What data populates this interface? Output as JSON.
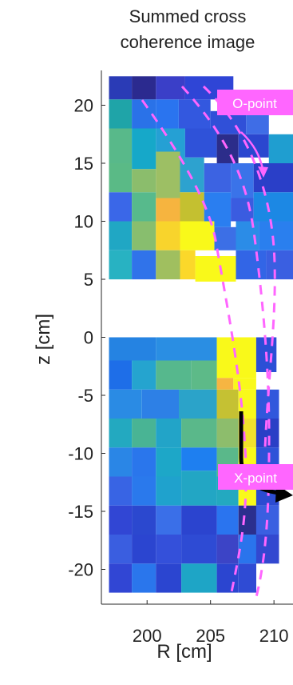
{
  "chart_data": {
    "type": "heatmap",
    "title_lines": [
      "Summed cross",
      "coherence image"
    ],
    "xlabel": "R [cm]",
    "ylabel": "z [cm]",
    "xticks": [
      200,
      205,
      210
    ],
    "yticks": [
      20,
      15,
      10,
      5,
      0,
      -5,
      -10,
      -15,
      -20
    ],
    "xlim": [
      196.4,
      211.5
    ],
    "ylim": [
      -23,
      23
    ],
    "annotations": [
      {
        "text": "O-point",
        "background": "#ff66ff"
      },
      {
        "text": "X-point",
        "background": "#ff66ff"
      }
    ],
    "colors": {
      "annotation_bg": "#ff66ff",
      "separatrix": "#ff66ff",
      "arrow": "#000000"
    },
    "upper_cells": [
      {
        "r0": 197.0,
        "r1": 198.8,
        "z0": 20.5,
        "z1": 22.5,
        "c": "#2a3bb6"
      },
      {
        "r0": 198.8,
        "r1": 200.7,
        "z0": 20.5,
        "z1": 22.5,
        "c": "#2b2a8f"
      },
      {
        "r0": 200.7,
        "r1": 203.0,
        "z0": 20.5,
        "z1": 22.5,
        "c": "#3a3fc8"
      },
      {
        "r0": 203.0,
        "r1": 206.8,
        "z0": 20.5,
        "z1": 22.5,
        "c": "#2f45d6"
      },
      {
        "r0": 197.0,
        "r1": 198.8,
        "z0": 18.0,
        "z1": 20.5,
        "c": "#1fa4a8"
      },
      {
        "r0": 198.8,
        "r1": 200.7,
        "z0": 18.0,
        "z1": 20.5,
        "c": "#2a72e8"
      },
      {
        "r0": 200.7,
        "r1": 202.5,
        "z0": 18.0,
        "z1": 20.5,
        "c": "#2a74ef"
      },
      {
        "r0": 202.5,
        "r1": 205.0,
        "z0": 18.0,
        "z1": 20.5,
        "c": "#3358df"
      },
      {
        "r0": 205.0,
        "r1": 207.8,
        "z0": 17.5,
        "z1": 19.5,
        "c": "#3050d8"
      },
      {
        "r0": 207.8,
        "r1": 209.6,
        "z0": 17.5,
        "z1": 19.5,
        "c": "#3f6de6"
      },
      {
        "r0": 197.0,
        "r1": 198.8,
        "z0": 15.0,
        "z1": 18.0,
        "c": "#58b98a"
      },
      {
        "r0": 198.8,
        "r1": 200.7,
        "z0": 14.5,
        "z1": 18.0,
        "c": "#16a8c9"
      },
      {
        "r0": 200.7,
        "r1": 203.0,
        "z0": 14.5,
        "z1": 18.0,
        "c": "#25a0d4"
      },
      {
        "r0": 203.0,
        "r1": 205.5,
        "z0": 15.5,
        "z1": 18.0,
        "c": "#2f52d9"
      },
      {
        "r0": 205.5,
        "r1": 207.2,
        "z0": 15.0,
        "z1": 17.5,
        "c": "#2c2d8a"
      },
      {
        "r0": 207.2,
        "r1": 209.6,
        "z0": 15.5,
        "z1": 17.5,
        "c": "#2b47cf"
      },
      {
        "r0": 209.6,
        "r1": 211.5,
        "z0": 15.0,
        "z1": 17.5,
        "c": "#1f9ed0"
      },
      {
        "r0": 197.0,
        "r1": 198.8,
        "z0": 12.5,
        "z1": 15.0,
        "c": "#5aba86"
      },
      {
        "r0": 198.8,
        "r1": 200.7,
        "z0": 12.5,
        "z1": 14.5,
        "c": "#8bbd6c"
      },
      {
        "r0": 200.7,
        "r1": 202.6,
        "z0": 12.0,
        "z1": 16.0,
        "c": "#9dbf64"
      },
      {
        "r0": 202.6,
        "r1": 204.5,
        "z0": 12.5,
        "z1": 15.5,
        "c": "#2da2cf"
      },
      {
        "r0": 204.5,
        "r1": 206.6,
        "z0": 12.5,
        "z1": 15.0,
        "c": "#3c63e2"
      },
      {
        "r0": 206.6,
        "r1": 208.4,
        "z0": 12.0,
        "z1": 15.0,
        "c": "#3a73e9"
      },
      {
        "r0": 208.4,
        "r1": 211.5,
        "z0": 12.5,
        "z1": 15.0,
        "c": "#2a3fc8"
      },
      {
        "r0": 197.0,
        "r1": 198.8,
        "z0": 10.0,
        "z1": 12.5,
        "c": "#3a67e8"
      },
      {
        "r0": 198.8,
        "r1": 200.7,
        "z0": 10.0,
        "z1": 12.5,
        "c": "#57ba8c"
      },
      {
        "r0": 200.7,
        "r1": 202.6,
        "z0": 10.0,
        "z1": 12.0,
        "c": "#f6b43f"
      },
      {
        "r0": 202.6,
        "r1": 204.5,
        "z0": 9.5,
        "z1": 12.5,
        "c": "#c4c030"
      },
      {
        "r0": 204.5,
        "r1": 206.6,
        "z0": 9.5,
        "z1": 12.5,
        "c": "#2a7ef0"
      },
      {
        "r0": 206.6,
        "r1": 208.4,
        "z0": 10.0,
        "z1": 12.0,
        "c": "#3a5ce0"
      },
      {
        "r0": 208.4,
        "r1": 211.5,
        "z0": 10.0,
        "z1": 12.5,
        "c": "#1c88e4"
      },
      {
        "r0": 197.0,
        "r1": 198.8,
        "z0": 7.5,
        "z1": 10.0,
        "c": "#20a7c4"
      },
      {
        "r0": 198.8,
        "r1": 200.7,
        "z0": 7.5,
        "z1": 10.0,
        "c": "#88be6e"
      },
      {
        "r0": 200.7,
        "r1": 202.6,
        "z0": 7.5,
        "z1": 10.0,
        "c": "#f8d42c"
      },
      {
        "r0": 202.6,
        "r1": 205.3,
        "z0": 7.5,
        "z1": 10.0,
        "c": "#f9f91a"
      },
      {
        "r0": 205.3,
        "r1": 207.0,
        "z0": 7.5,
        "z1": 9.5,
        "c": "#3c6fe6"
      },
      {
        "r0": 207.0,
        "r1": 208.8,
        "z0": 7.5,
        "z1": 10.0,
        "c": "#2b8ce7"
      },
      {
        "r0": 208.8,
        "r1": 211.5,
        "z0": 7.5,
        "z1": 10.0,
        "c": "#2a7fee"
      },
      {
        "r0": 197.0,
        "r1": 198.8,
        "z0": 5.0,
        "z1": 7.5,
        "c": "#28b2c2"
      },
      {
        "r0": 198.8,
        "r1": 200.7,
        "z0": 5.0,
        "z1": 7.5,
        "c": "#3073ea"
      },
      {
        "r0": 200.7,
        "r1": 202.6,
        "z0": 5.0,
        "z1": 7.5,
        "c": "#a0bf5f"
      },
      {
        "r0": 202.6,
        "r1": 203.8,
        "z0": 5.0,
        "z1": 7.5,
        "c": "#fbd82a"
      },
      {
        "r0": 203.8,
        "r1": 207.0,
        "z0": 4.8,
        "z1": 7.0,
        "c": "#f9f91a"
      },
      {
        "r0": 207.0,
        "r1": 209.4,
        "z0": 5.0,
        "z1": 7.5,
        "c": "#3265e6"
      },
      {
        "r0": 209.4,
        "r1": 211.5,
        "z0": 5.0,
        "z1": 7.5,
        "c": "#3a5fe1"
      }
    ],
    "lower_cells": [
      {
        "r0": 197.0,
        "r1": 200.7,
        "z0": -2.0,
        "z1": 0.0,
        "c": "#2583e2"
      },
      {
        "r0": 200.7,
        "r1": 205.5,
        "z0": -2.0,
        "z1": 0.0,
        "c": "#2a8ee3"
      },
      {
        "r0": 205.5,
        "r1": 208.6,
        "z0": -3.5,
        "z1": 0.0,
        "c": "#f9f91a"
      },
      {
        "r0": 208.6,
        "r1": 210.2,
        "z0": -3.0,
        "z1": 0.0,
        "c": "#2b4fd6"
      },
      {
        "r0": 197.0,
        "r1": 198.8,
        "z0": -4.5,
        "z1": -2.0,
        "c": "#1e6ee8"
      },
      {
        "r0": 198.8,
        "r1": 200.7,
        "z0": -4.5,
        "z1": -2.0,
        "c": "#25a4cf"
      },
      {
        "r0": 200.7,
        "r1": 203.5,
        "z0": -4.5,
        "z1": -2.0,
        "c": "#56b88d"
      },
      {
        "r0": 203.5,
        "r1": 205.5,
        "z0": -4.5,
        "z1": -2.0,
        "c": "#5dba88"
      },
      {
        "r0": 205.5,
        "r1": 206.8,
        "z0": -4.5,
        "z1": -3.5,
        "c": "#f6b542"
      },
      {
        "r0": 206.8,
        "r1": 208.6,
        "z0": -4.5,
        "z1": -3.5,
        "c": "#f9f91a"
      },
      {
        "r0": 197.0,
        "r1": 199.6,
        "z0": -7.0,
        "z1": -4.5,
        "c": "#2a8be4"
      },
      {
        "r0": 199.6,
        "r1": 202.5,
        "z0": -7.0,
        "z1": -4.5,
        "c": "#2d80e6"
      },
      {
        "r0": 202.5,
        "r1": 205.5,
        "z0": -7.0,
        "z1": -4.5,
        "c": "#2ba3c9"
      },
      {
        "r0": 205.5,
        "r1": 207.2,
        "z0": -7.0,
        "z1": -4.5,
        "c": "#c5c133"
      },
      {
        "r0": 207.2,
        "r1": 208.6,
        "z0": -7.0,
        "z1": -4.5,
        "c": "#f9f91a"
      },
      {
        "r0": 208.6,
        "r1": 210.4,
        "z0": -7.0,
        "z1": -4.5,
        "c": "#3157dc"
      },
      {
        "r0": 197.0,
        "r1": 198.8,
        "z0": -9.5,
        "z1": -7.0,
        "c": "#23a9c0"
      },
      {
        "r0": 198.8,
        "r1": 200.7,
        "z0": -9.5,
        "z1": -7.0,
        "c": "#49b494"
      },
      {
        "r0": 200.7,
        "r1": 202.7,
        "z0": -9.5,
        "z1": -7.0,
        "c": "#22a4c8"
      },
      {
        "r0": 202.7,
        "r1": 205.5,
        "z0": -9.5,
        "z1": -7.0,
        "c": "#5ab88a"
      },
      {
        "r0": 205.5,
        "r1": 207.2,
        "z0": -9.5,
        "z1": -7.0,
        "c": "#8dbd6c"
      },
      {
        "r0": 207.2,
        "r1": 208.6,
        "z0": -9.5,
        "z1": -7.0,
        "c": "#f2e22c"
      },
      {
        "r0": 208.6,
        "r1": 210.4,
        "z0": -9.5,
        "z1": -7.0,
        "c": "#2a3fc6"
      },
      {
        "r0": 197.0,
        "r1": 198.8,
        "z0": -12.0,
        "z1": -9.5,
        "c": "#2a86e6"
      },
      {
        "r0": 198.8,
        "r1": 200.7,
        "z0": -12.0,
        "z1": -9.5,
        "c": "#2a76ec"
      },
      {
        "r0": 200.7,
        "r1": 202.7,
        "z0": -12.0,
        "z1": -9.5,
        "c": "#1da7c8"
      },
      {
        "r0": 202.7,
        "r1": 205.5,
        "z0": -11.5,
        "z1": -9.5,
        "c": "#1e7ff0"
      },
      {
        "r0": 205.5,
        "r1": 207.2,
        "z0": -12.0,
        "z1": -9.5,
        "c": "#5ab88a"
      },
      {
        "r0": 207.2,
        "r1": 208.6,
        "z0": -12.0,
        "z1": -9.5,
        "c": "#f9f91a"
      },
      {
        "r0": 208.6,
        "r1": 210.4,
        "z0": -12.0,
        "z1": -9.5,
        "c": "#2e53d8"
      },
      {
        "r0": 197.0,
        "r1": 198.8,
        "z0": -14.5,
        "z1": -12.0,
        "c": "#3864e4"
      },
      {
        "r0": 198.8,
        "r1": 200.7,
        "z0": -14.5,
        "z1": -12.0,
        "c": "#2a79ec"
      },
      {
        "r0": 200.7,
        "r1": 202.7,
        "z0": -14.5,
        "z1": -12.0,
        "c": "#1fa2cd"
      },
      {
        "r0": 202.7,
        "r1": 205.5,
        "z0": -14.5,
        "z1": -11.5,
        "c": "#22a6c4"
      },
      {
        "r0": 205.5,
        "r1": 207.2,
        "z0": -14.5,
        "z1": -12.0,
        "c": "#23a9c0"
      },
      {
        "r0": 207.2,
        "r1": 208.6,
        "z0": -14.5,
        "z1": -12.0,
        "c": "#f9f91a"
      },
      {
        "r0": 208.6,
        "r1": 210.4,
        "z0": -14.5,
        "z1": -12.0,
        "c": "#2b4bd2"
      },
      {
        "r0": 197.0,
        "r1": 198.8,
        "z0": -17.0,
        "z1": -14.5,
        "c": "#3146d4"
      },
      {
        "r0": 198.8,
        "r1": 200.7,
        "z0": -17.0,
        "z1": -14.5,
        "c": "#2b48cf"
      },
      {
        "r0": 200.7,
        "r1": 202.7,
        "z0": -17.0,
        "z1": -14.5,
        "c": "#3a6fe8"
      },
      {
        "r0": 202.7,
        "r1": 205.5,
        "z0": -17.0,
        "z1": -14.5,
        "c": "#2b44cf"
      },
      {
        "r0": 205.5,
        "r1": 207.2,
        "z0": -17.0,
        "z1": -14.5,
        "c": "#2a74ef"
      },
      {
        "r0": 207.2,
        "r1": 208.6,
        "z0": -17.0,
        "z1": -14.5,
        "c": "#2b2f8e"
      },
      {
        "r0": 208.6,
        "r1": 210.4,
        "z0": -17.0,
        "z1": -14.5,
        "c": "#3a5fe1"
      },
      {
        "r0": 197.0,
        "r1": 198.8,
        "z0": -19.5,
        "z1": -17.0,
        "c": "#3a5ee0"
      },
      {
        "r0": 198.8,
        "r1": 200.7,
        "z0": -19.5,
        "z1": -17.0,
        "c": "#2b45d0"
      },
      {
        "r0": 200.7,
        "r1": 202.7,
        "z0": -19.5,
        "z1": -17.0,
        "c": "#3450da"
      },
      {
        "r0": 202.7,
        "r1": 205.5,
        "z0": -19.5,
        "z1": -17.0,
        "c": "#2e4bd4"
      },
      {
        "r0": 205.5,
        "r1": 207.2,
        "z0": -19.5,
        "z1": -17.0,
        "c": "#3c44c6"
      },
      {
        "r0": 207.2,
        "r1": 208.6,
        "z0": -19.5,
        "z1": -17.0,
        "c": "#2a74ec"
      },
      {
        "r0": 208.6,
        "r1": 210.4,
        "z0": -19.5,
        "z1": -17.0,
        "c": "#3248d0"
      },
      {
        "r0": 197.0,
        "r1": 198.8,
        "z0": -22.0,
        "z1": -19.5,
        "c": "#3146d4"
      },
      {
        "r0": 198.8,
        "r1": 200.7,
        "z0": -22.0,
        "z1": -19.5,
        "c": "#2a76ec"
      },
      {
        "r0": 200.7,
        "r1": 202.7,
        "z0": -22.0,
        "z1": -19.5,
        "c": "#2b45d0"
      },
      {
        "r0": 202.7,
        "r1": 205.5,
        "z0": -22.0,
        "z1": -19.5,
        "c": "#1ea5c6"
      },
      {
        "r0": 205.5,
        "r1": 207.2,
        "z0": -22.0,
        "z1": -19.5,
        "c": "#2b45d0"
      },
      {
        "r0": 207.2,
        "r1": 208.6,
        "z0": -22.0,
        "z1": -19.5,
        "c": "#2f4bd4"
      }
    ]
  }
}
